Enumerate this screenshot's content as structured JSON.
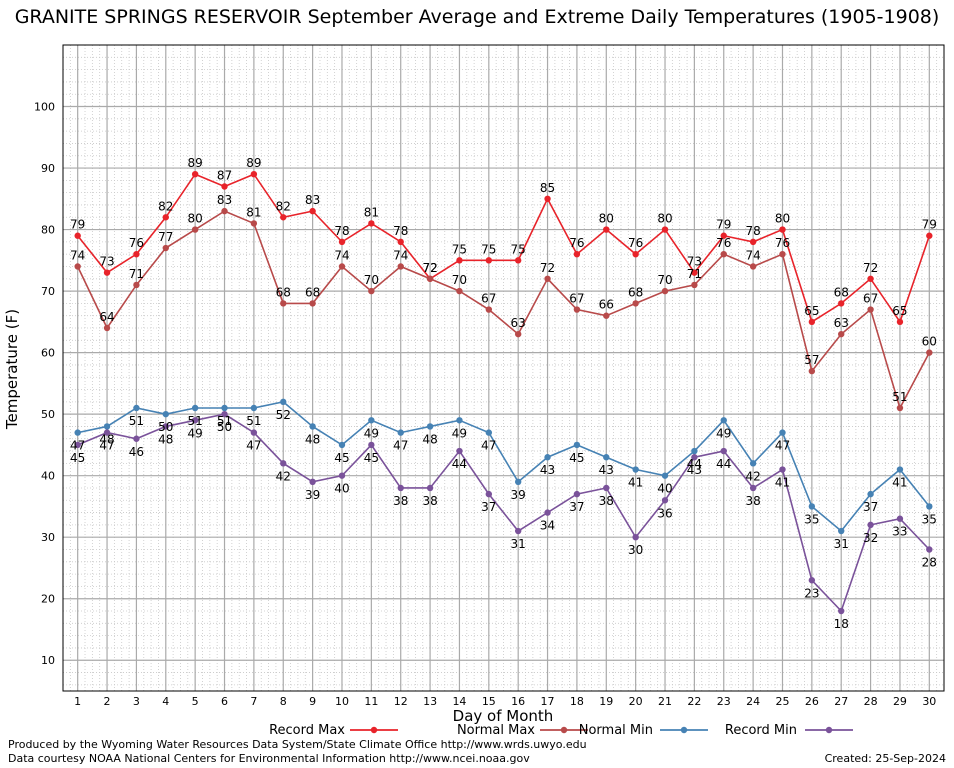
{
  "chart_data": {
    "type": "line",
    "title": "GRANITE SPRINGS RESERVOIR September Average and Extreme Daily Temperatures (1905-1908)",
    "xlabel": "Day of Month",
    "ylabel": "Temperature (F)",
    "ylim": [
      5,
      110
    ],
    "xlim": [
      0.5,
      30.5
    ],
    "yticks": [
      10,
      20,
      30,
      40,
      50,
      60,
      70,
      80,
      90,
      100
    ],
    "x": [
      1,
      2,
      3,
      4,
      5,
      6,
      7,
      8,
      9,
      10,
      11,
      12,
      13,
      14,
      15,
      16,
      17,
      18,
      19,
      20,
      21,
      22,
      23,
      24,
      25,
      26,
      27,
      28,
      29,
      30
    ],
    "grid": true,
    "legend_position": "bottom",
    "series": [
      {
        "name": "Record Max",
        "color": "#e8232a",
        "values": [
          79,
          73,
          76,
          82,
          89,
          87,
          89,
          82,
          83,
          78,
          81,
          78,
          72,
          75,
          75,
          75,
          85,
          76,
          80,
          76,
          80,
          73,
          79,
          78,
          80,
          65,
          68,
          72,
          65,
          79
        ]
      },
      {
        "name": "Normal Max",
        "color": "#b84a4a",
        "values": [
          74,
          64,
          71,
          77,
          80,
          83,
          81,
          68,
          68,
          74,
          70,
          74,
          72,
          70,
          67,
          63,
          72,
          67,
          66,
          68,
          70,
          71,
          76,
          74,
          76,
          57,
          63,
          67,
          51,
          60
        ]
      },
      {
        "name": "Normal Min",
        "color": "#4682b4",
        "values": [
          47,
          48,
          51,
          50,
          51,
          51,
          51,
          52,
          48,
          45,
          49,
          47,
          48,
          49,
          47,
          39,
          43,
          45,
          43,
          41,
          40,
          44,
          49,
          42,
          47,
          35,
          31,
          37,
          41,
          35
        ]
      },
      {
        "name": "Record Min",
        "color": "#7a529a",
        "values": [
          45,
          47,
          46,
          48,
          49,
          50,
          47,
          42,
          39,
          40,
          45,
          38,
          38,
          44,
          37,
          31,
          34,
          37,
          38,
          30,
          36,
          43,
          44,
          38,
          41,
          23,
          18,
          32,
          33,
          28
        ]
      }
    ]
  },
  "footer": {
    "credit1": "Produced by the Wyoming Water Resources Data System/State Climate Office http://www.wrds.uwyo.edu",
    "credit2": "Data courtesy NOAA National Centers for Environmental Information http://www.ncei.noaa.gov",
    "created": "Created:  25-Sep-2024"
  }
}
